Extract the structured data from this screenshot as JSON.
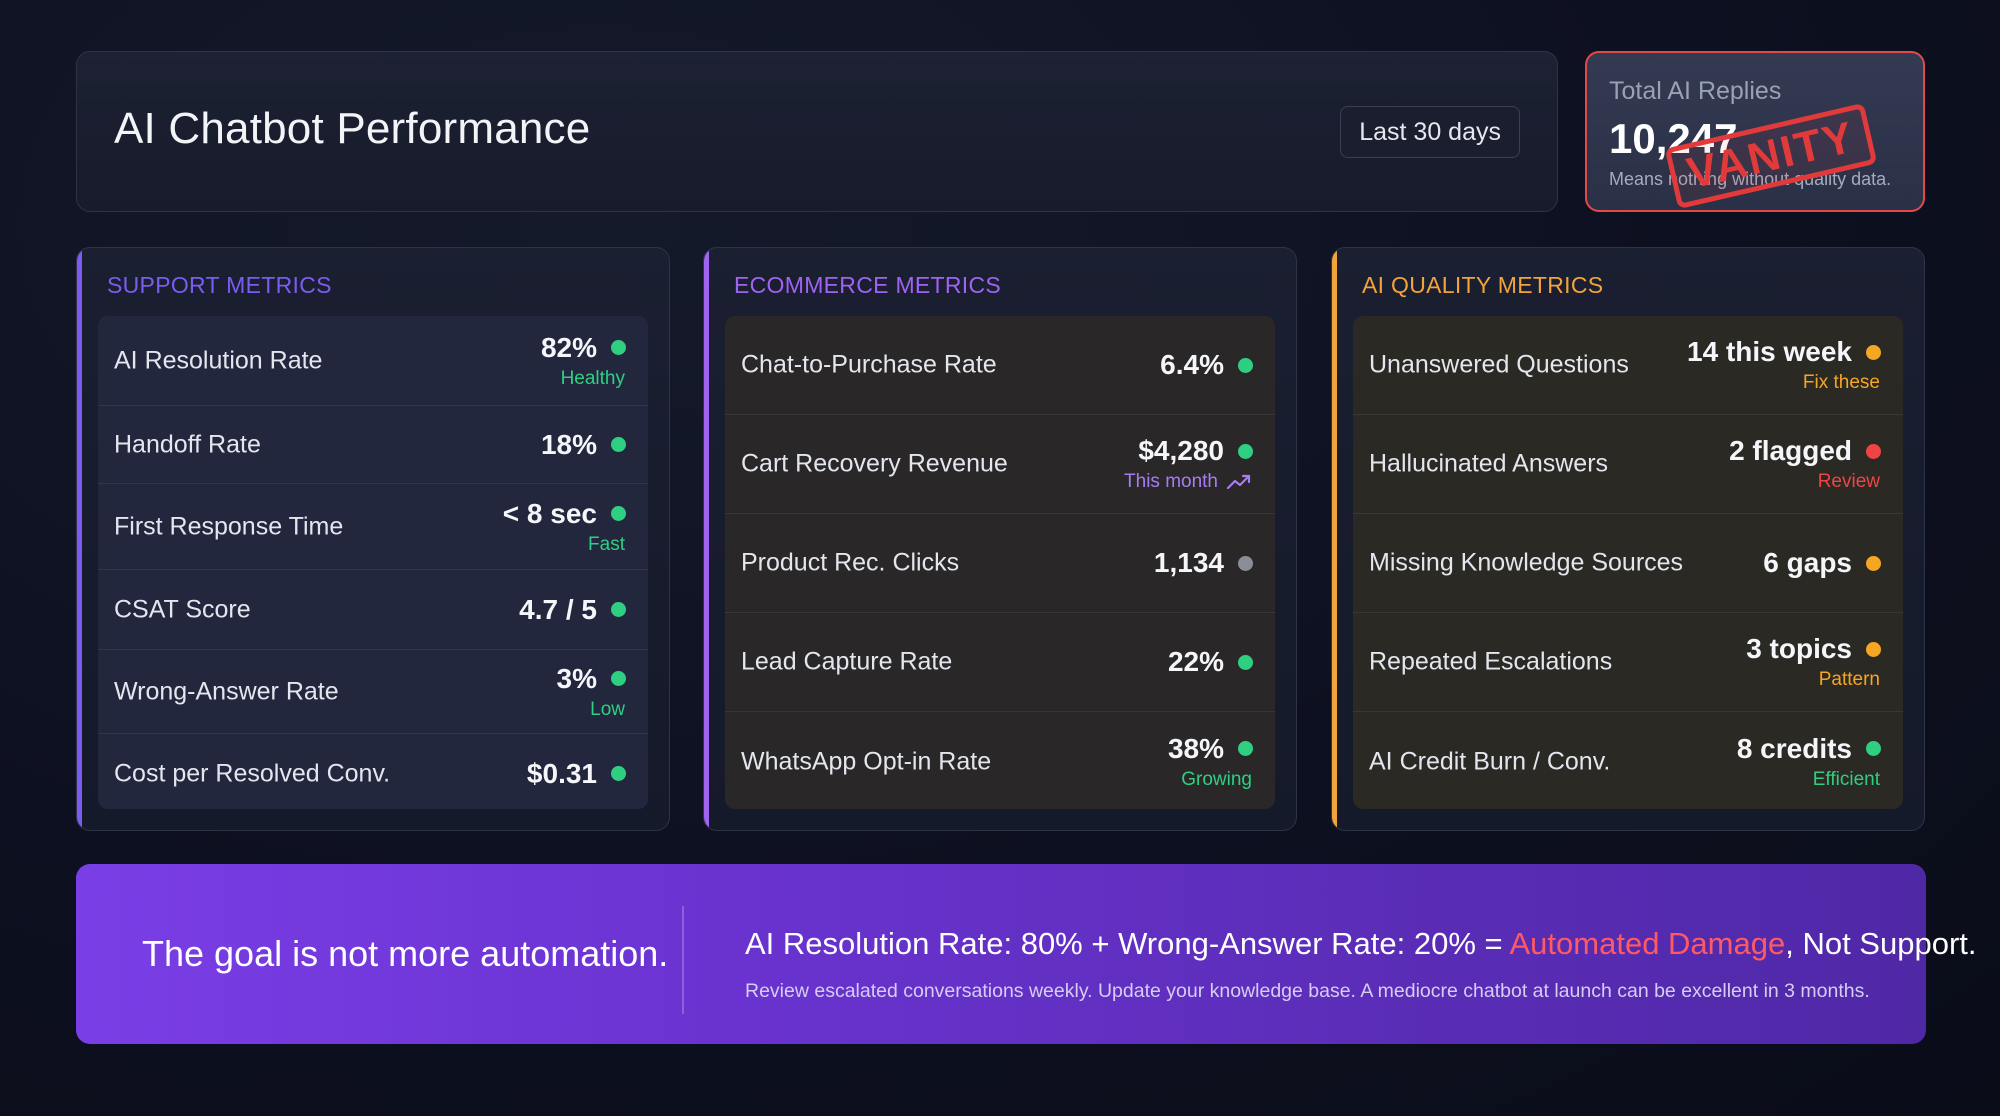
{
  "header": {
    "title": "AI Chatbot Performance",
    "range_label": "Last 30 days"
  },
  "vanity_card": {
    "title": "Total AI Replies",
    "value": "10,247",
    "subtitle": "Means nothing without quality data.",
    "stamp": "VANITY",
    "border_color": "#e24a4a"
  },
  "support": {
    "title": "SUPPORT METRICS",
    "accent_color": "#7b5cf0",
    "rows": [
      {
        "label": "AI Resolution Rate",
        "value": "82%",
        "status": "green",
        "sub": "Healthy"
      },
      {
        "label": "Handoff Rate",
        "value": "18%",
        "status": "green",
        "sub": ""
      },
      {
        "label": "First Response Time",
        "value": "< 8 sec",
        "status": "green",
        "sub": "Fast"
      },
      {
        "label": "CSAT Score",
        "value": "4.7 / 5",
        "status": "green",
        "sub": ""
      },
      {
        "label": "Wrong-Answer Rate",
        "value": "3%",
        "status": "green",
        "sub": "Low"
      },
      {
        "label": "Cost per Resolved Conv.",
        "value": "$0.31",
        "status": "green",
        "sub": ""
      }
    ]
  },
  "ecommerce": {
    "title": "ECOMMERCE METRICS",
    "accent_color": "#a062f0",
    "rows": [
      {
        "label": "Chat-to-Purchase Rate",
        "value": "6.4%",
        "status": "green",
        "sub": ""
      },
      {
        "label": "Cart Recovery Revenue",
        "value": "$4,280",
        "status": "green",
        "sub": "This month",
        "sub_icon": "trend-up-icon"
      },
      {
        "label": "Product Rec. Clicks",
        "value": "1,134",
        "status": "gray",
        "sub": ""
      },
      {
        "label": "Lead Capture Rate",
        "value": "22%",
        "status": "green",
        "sub": ""
      },
      {
        "label": "WhatsApp Opt-in Rate",
        "value": "38%",
        "status": "green",
        "sub": "Growing"
      }
    ]
  },
  "quality": {
    "title": "AI QUALITY METRICS",
    "accent_color": "#f2a43a",
    "rows": [
      {
        "label": "Unanswered Questions",
        "value": "14 this week",
        "status": "orange",
        "sub": "Fix these"
      },
      {
        "label": "Hallucinated Answers",
        "value": "2 flagged",
        "status": "red",
        "sub": "Review"
      },
      {
        "label": "Missing Knowledge Sources",
        "value": "6 gaps",
        "status": "orange",
        "sub": ""
      },
      {
        "label": "Repeated Escalations",
        "value": "3 topics",
        "status": "orange",
        "sub": "Pattern"
      },
      {
        "label": "AI Credit Burn / Conv.",
        "value": "8 credits",
        "status": "green",
        "sub": "Efficient"
      }
    ]
  },
  "status_colors": {
    "green": "#2fcf82",
    "gray": "#8a8d96",
    "orange": "#f5a623",
    "red": "#ef4444",
    "purple": "#a77cf2"
  },
  "banner": {
    "goal": "The goal is not more automation.",
    "formula_prefix": "AI Resolution Rate: 80% + Wrong-Answer Rate: 20% = ",
    "formula_highlight": "Automated Damage",
    "formula_suffix": ", Not Support.",
    "note": "Review escalated conversations weekly. Update your knowledge base. A mediocre chatbot at launch can be excellent in 3 months."
  }
}
